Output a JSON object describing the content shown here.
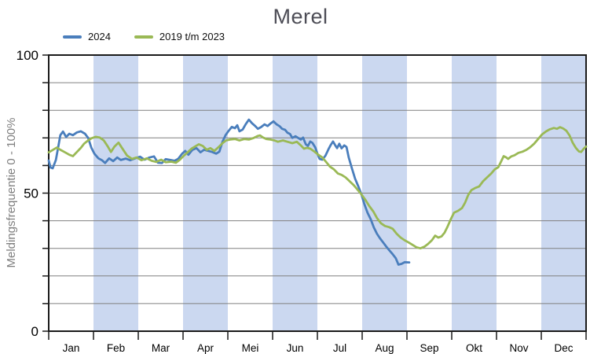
{
  "title": "Merel",
  "legend": {
    "items": [
      {
        "label": "2024",
        "color": "#4a7ebc"
      },
      {
        "label": "2019 t/m 2023",
        "color": "#9ab955"
      }
    ]
  },
  "chart_data": {
    "type": "line",
    "title": "Merel",
    "xlabel": "",
    "ylabel": "Meldingsfrequentie 0 - 100%",
    "ylim": [
      0,
      100
    ],
    "y_major_ticks": [
      0,
      50,
      100
    ],
    "y_minor_step": 10,
    "grid": true,
    "legend_position": "top-left",
    "x_months": [
      "Jan",
      "Feb",
      "Mar",
      "Apr",
      "Mei",
      "Jun",
      "Jul",
      "Aug",
      "Sep",
      "Okt",
      "Nov",
      "Dec"
    ],
    "shaded_months": [
      "Feb",
      "Apr",
      "Jun",
      "Aug",
      "Okt",
      "Dec"
    ],
    "colors": {
      "band": "#cbd8f0",
      "gridline": "#808080",
      "axis": "#1a1a1a",
      "tick_label": "#000000",
      "axis_title": "#7f7f7f",
      "title": "#4d4d56"
    },
    "x_unit": "month_fraction_0_to_12",
    "series": [
      {
        "name": "2024",
        "color": "#4a7ebc",
        "points": [
          [
            0,
            61.8
          ],
          [
            0.04,
            59.3
          ],
          [
            0.09,
            59
          ],
          [
            0.16,
            62
          ],
          [
            0.21,
            66.5
          ],
          [
            0.26,
            71
          ],
          [
            0.32,
            72.3
          ],
          [
            0.39,
            70.3
          ],
          [
            0.46,
            71.5
          ],
          [
            0.54,
            71
          ],
          [
            0.63,
            72
          ],
          [
            0.72,
            72.4
          ],
          [
            0.81,
            71.5
          ],
          [
            0.88,
            70
          ],
          [
            0.95,
            66.5
          ],
          [
            1.02,
            64.3
          ],
          [
            1.11,
            62.6
          ],
          [
            1.19,
            61.9
          ],
          [
            1.26,
            60.9
          ],
          [
            1.35,
            62.6
          ],
          [
            1.44,
            61.6
          ],
          [
            1.53,
            62.9
          ],
          [
            1.61,
            62
          ],
          [
            1.72,
            62.5
          ],
          [
            1.82,
            61.9
          ],
          [
            1.93,
            62.6
          ],
          [
            2.04,
            63.2
          ],
          [
            2.14,
            62.1
          ],
          [
            2.25,
            62.9
          ],
          [
            2.35,
            63.3
          ],
          [
            2.44,
            61
          ],
          [
            2.53,
            60.9
          ],
          [
            2.61,
            62.3
          ],
          [
            2.72,
            62
          ],
          [
            2.81,
            61.7
          ],
          [
            2.89,
            62.4
          ],
          [
            2.98,
            64.3
          ],
          [
            3.05,
            65.3
          ],
          [
            3.12,
            63.9
          ],
          [
            3.21,
            65.7
          ],
          [
            3.3,
            66.3
          ],
          [
            3.39,
            64.8
          ],
          [
            3.47,
            65.7
          ],
          [
            3.56,
            65.3
          ],
          [
            3.65,
            64.9
          ],
          [
            3.74,
            64.3
          ],
          [
            3.81,
            65
          ],
          [
            3.88,
            68.6
          ],
          [
            3.95,
            71
          ],
          [
            4.02,
            72.6
          ],
          [
            4.09,
            74
          ],
          [
            4.16,
            73.5
          ],
          [
            4.21,
            74.6
          ],
          [
            4.26,
            72.4
          ],
          [
            4.33,
            73
          ],
          [
            4.4,
            75
          ],
          [
            4.47,
            76.6
          ],
          [
            4.54,
            75.3
          ],
          [
            4.61,
            74.3
          ],
          [
            4.67,
            73.3
          ],
          [
            4.74,
            73.9
          ],
          [
            4.82,
            74.9
          ],
          [
            4.89,
            74.3
          ],
          [
            4.96,
            75.3
          ],
          [
            5.02,
            76
          ],
          [
            5.09,
            74.9
          ],
          [
            5.16,
            74.2
          ],
          [
            5.21,
            73.3
          ],
          [
            5.28,
            72.9
          ],
          [
            5.33,
            71.9
          ],
          [
            5.39,
            71.4
          ],
          [
            5.44,
            70
          ],
          [
            5.51,
            70.6
          ],
          [
            5.58,
            69.9
          ],
          [
            5.63,
            69.4
          ],
          [
            5.68,
            70.1
          ],
          [
            5.74,
            67.7
          ],
          [
            5.79,
            67.1
          ],
          [
            5.84,
            68.7
          ],
          [
            5.89,
            68.2
          ],
          [
            5.95,
            66.6
          ],
          [
            6,
            64.3
          ],
          [
            6.05,
            62.4
          ],
          [
            6.11,
            62.1
          ],
          [
            6.18,
            63.6
          ],
          [
            6.25,
            66
          ],
          [
            6.3,
            67.5
          ],
          [
            6.35,
            68.7
          ],
          [
            6.4,
            67.3
          ],
          [
            6.44,
            66.3
          ],
          [
            6.49,
            67.9
          ],
          [
            6.54,
            66.2
          ],
          [
            6.6,
            67.3
          ],
          [
            6.65,
            66.7
          ],
          [
            6.7,
            62.9
          ],
          [
            6.77,
            59
          ],
          [
            6.84,
            55.3
          ],
          [
            6.91,
            52.6
          ],
          [
            6.98,
            49.7
          ],
          [
            7.05,
            46
          ],
          [
            7.12,
            42.9
          ],
          [
            7.19,
            40.6
          ],
          [
            7.26,
            37.6
          ],
          [
            7.33,
            35.3
          ],
          [
            7.4,
            33.6
          ],
          [
            7.47,
            32.1
          ],
          [
            7.54,
            30.6
          ],
          [
            7.61,
            29.2
          ],
          [
            7.68,
            27.9
          ],
          [
            7.75,
            26.4
          ],
          [
            7.81,
            24.1
          ],
          [
            7.88,
            24.4
          ],
          [
            7.95,
            25
          ],
          [
            8.05,
            24.9
          ]
        ]
      },
      {
        "name": "2019 t/m 2023",
        "color": "#9ab955",
        "points": [
          [
            0,
            64.8
          ],
          [
            0.09,
            65.6
          ],
          [
            0.18,
            66.5
          ],
          [
            0.26,
            65.7
          ],
          [
            0.35,
            64.9
          ],
          [
            0.46,
            63.9
          ],
          [
            0.54,
            63.4
          ],
          [
            0.63,
            64.9
          ],
          [
            0.72,
            66.4
          ],
          [
            0.79,
            67.9
          ],
          [
            0.88,
            69.1
          ],
          [
            0.96,
            69.9
          ],
          [
            1.05,
            70.4
          ],
          [
            1.14,
            70.1
          ],
          [
            1.23,
            69.1
          ],
          [
            1.32,
            66.9
          ],
          [
            1.39,
            64.9
          ],
          [
            1.47,
            66.9
          ],
          [
            1.56,
            68.3
          ],
          [
            1.65,
            66
          ],
          [
            1.75,
            63.6
          ],
          [
            1.86,
            62.4
          ],
          [
            1.96,
            62.9
          ],
          [
            2.07,
            61.9
          ],
          [
            2.19,
            62.6
          ],
          [
            2.3,
            61.7
          ],
          [
            2.4,
            61.3
          ],
          [
            2.51,
            62.1
          ],
          [
            2.61,
            61.2
          ],
          [
            2.74,
            61.4
          ],
          [
            2.84,
            61
          ],
          [
            2.93,
            62.1
          ],
          [
            3.02,
            63.6
          ],
          [
            3.11,
            64.9
          ],
          [
            3.19,
            66.1
          ],
          [
            3.28,
            67
          ],
          [
            3.35,
            67.7
          ],
          [
            3.44,
            67.1
          ],
          [
            3.53,
            65.7
          ],
          [
            3.61,
            66.3
          ],
          [
            3.7,
            65.3
          ],
          [
            3.79,
            66.6
          ],
          [
            3.88,
            68.1
          ],
          [
            3.96,
            69.1
          ],
          [
            4.05,
            69.4
          ],
          [
            4.16,
            69.6
          ],
          [
            4.26,
            69.1
          ],
          [
            4.37,
            69.6
          ],
          [
            4.47,
            69.4
          ],
          [
            4.58,
            70
          ],
          [
            4.67,
            70.7
          ],
          [
            4.72,
            70.9
          ],
          [
            4.79,
            70.1
          ],
          [
            4.86,
            69.6
          ],
          [
            4.95,
            69.4
          ],
          [
            5.04,
            69.1
          ],
          [
            5.12,
            68.6
          ],
          [
            5.23,
            69.1
          ],
          [
            5.33,
            68.6
          ],
          [
            5.44,
            68.1
          ],
          [
            5.54,
            68.6
          ],
          [
            5.63,
            67.3
          ],
          [
            5.7,
            66.1
          ],
          [
            5.77,
            66.4
          ],
          [
            5.84,
            66.1
          ],
          [
            5.93,
            65.1
          ],
          [
            6.02,
            63.9
          ],
          [
            6.11,
            62.9
          ],
          [
            6.19,
            61.4
          ],
          [
            6.28,
            59.6
          ],
          [
            6.37,
            58.6
          ],
          [
            6.46,
            57.1
          ],
          [
            6.54,
            56.6
          ],
          [
            6.63,
            55.7
          ],
          [
            6.72,
            54.3
          ],
          [
            6.81,
            52.9
          ],
          [
            6.89,
            51.4
          ],
          [
            6.98,
            49.6
          ],
          [
            7.07,
            47.6
          ],
          [
            7.16,
            45.3
          ],
          [
            7.25,
            43.3
          ],
          [
            7.33,
            41
          ],
          [
            7.42,
            39.1
          ],
          [
            7.51,
            38.1
          ],
          [
            7.6,
            37.7
          ],
          [
            7.68,
            37.1
          ],
          [
            7.77,
            35.3
          ],
          [
            7.86,
            33.9
          ],
          [
            7.95,
            32.9
          ],
          [
            8.04,
            32.1
          ],
          [
            8.12,
            31.3
          ],
          [
            8.21,
            30.4
          ],
          [
            8.3,
            30
          ],
          [
            8.39,
            30.6
          ],
          [
            8.47,
            31.6
          ],
          [
            8.56,
            33
          ],
          [
            8.63,
            34.6
          ],
          [
            8.7,
            33.9
          ],
          [
            8.77,
            34.3
          ],
          [
            8.84,
            35.7
          ],
          [
            8.91,
            38
          ],
          [
            8.98,
            40.6
          ],
          [
            9.05,
            42.9
          ],
          [
            9.14,
            43.6
          ],
          [
            9.23,
            44.6
          ],
          [
            9.3,
            46.6
          ],
          [
            9.37,
            49.4
          ],
          [
            9.44,
            51.1
          ],
          [
            9.53,
            51.9
          ],
          [
            9.61,
            52.4
          ],
          [
            9.7,
            54.3
          ],
          [
            9.79,
            55.7
          ],
          [
            9.88,
            57.1
          ],
          [
            9.96,
            58.6
          ],
          [
            10.04,
            59.4
          ],
          [
            10.11,
            61.7
          ],
          [
            10.16,
            63.4
          ],
          [
            10.21,
            63
          ],
          [
            10.26,
            62.4
          ],
          [
            10.33,
            63.3
          ],
          [
            10.4,
            63.7
          ],
          [
            10.49,
            64.6
          ],
          [
            10.58,
            65
          ],
          [
            10.67,
            65.7
          ],
          [
            10.75,
            66.6
          ],
          [
            10.84,
            67.9
          ],
          [
            10.93,
            69.6
          ],
          [
            11.02,
            71.3
          ],
          [
            11.11,
            72.4
          ],
          [
            11.19,
            73.1
          ],
          [
            11.28,
            73.6
          ],
          [
            11.35,
            73.3
          ],
          [
            11.42,
            73.9
          ],
          [
            11.49,
            73.4
          ],
          [
            11.56,
            72.6
          ],
          [
            11.63,
            70.9
          ],
          [
            11.7,
            68.3
          ],
          [
            11.77,
            66.4
          ],
          [
            11.84,
            65.1
          ],
          [
            11.89,
            64.9
          ],
          [
            11.95,
            66.1
          ],
          [
            12,
            66.9
          ]
        ]
      }
    ]
  }
}
